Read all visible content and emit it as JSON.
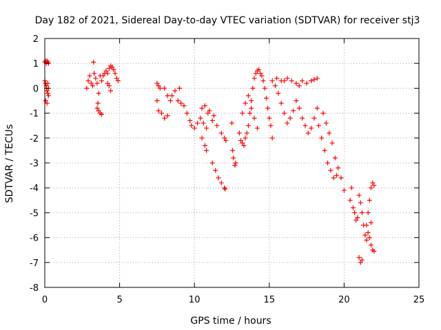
{
  "chart_data": {
    "type": "scatter",
    "title": "Day 182 of 2021, Sidereal Day-to-day VTEC variation (SDTVAR) for receiver stj3",
    "xlabel": "GPS time / hours",
    "ylabel": "SDTVAR / TECUs",
    "xlim": [
      0,
      25
    ],
    "ylim": [
      -8,
      2
    ],
    "xticks": [
      0,
      5,
      10,
      15,
      20,
      25
    ],
    "yticks": [
      -8,
      -7,
      -6,
      -5,
      -4,
      -3,
      -2,
      -1,
      0,
      1,
      2
    ],
    "grid": true,
    "marker": "+",
    "series": [
      {
        "name": "SDTVAR",
        "color": "#ff0000",
        "points": [
          [
            0.0,
            1.05
          ],
          [
            0.05,
            1.1
          ],
          [
            0.1,
            1.0
          ],
          [
            0.15,
            1.1
          ],
          [
            0.2,
            1.05
          ],
          [
            0.25,
            1.0
          ],
          [
            0.0,
            0.3
          ],
          [
            0.05,
            0.2
          ],
          [
            0.1,
            0.1
          ],
          [
            0.12,
            0.0
          ],
          [
            0.15,
            -0.1
          ],
          [
            0.2,
            -0.2
          ],
          [
            0.25,
            -0.3
          ],
          [
            0.05,
            -0.5
          ],
          [
            0.15,
            -0.6
          ],
          [
            0.2,
            0.2
          ],
          [
            0.25,
            0.0
          ],
          [
            2.8,
            0.0
          ],
          [
            2.9,
            0.3
          ],
          [
            3.0,
            0.5
          ],
          [
            3.1,
            0.2
          ],
          [
            3.2,
            0.1
          ],
          [
            3.25,
            1.05
          ],
          [
            3.3,
            0.6
          ],
          [
            3.4,
            0.4
          ],
          [
            3.5,
            0.2
          ],
          [
            3.6,
            -0.2
          ],
          [
            3.7,
            0.5
          ],
          [
            3.8,
            0.3
          ],
          [
            3.5,
            -0.8
          ],
          [
            3.6,
            -0.9
          ],
          [
            3.7,
            -1.0
          ],
          [
            3.8,
            -1.05
          ],
          [
            3.55,
            -0.6
          ],
          [
            3.9,
            0.5
          ],
          [
            4.0,
            0.6
          ],
          [
            4.1,
            0.7
          ],
          [
            4.2,
            0.6
          ],
          [
            4.3,
            0.8
          ],
          [
            4.4,
            0.9
          ],
          [
            4.5,
            0.85
          ],
          [
            4.6,
            0.75
          ],
          [
            4.7,
            0.6
          ],
          [
            4.8,
            0.4
          ],
          [
            4.9,
            0.3
          ],
          [
            4.2,
            0.2
          ],
          [
            4.3,
            0.1
          ],
          [
            4.4,
            -0.1
          ],
          [
            7.5,
            0.2
          ],
          [
            7.6,
            0.1
          ],
          [
            7.7,
            0.0
          ],
          [
            7.5,
            -0.5
          ],
          [
            7.6,
            -0.9
          ],
          [
            7.8,
            -1.0
          ],
          [
            8.0,
            -1.2
          ],
          [
            8.2,
            -1.1
          ],
          [
            8.0,
            0.0
          ],
          [
            8.2,
            -0.3
          ],
          [
            8.4,
            -0.5
          ],
          [
            8.5,
            -0.3
          ],
          [
            8.7,
            -0.1
          ],
          [
            8.9,
            -0.5
          ],
          [
            9.0,
            0.0
          ],
          [
            9.1,
            -0.6
          ],
          [
            9.3,
            -0.7
          ],
          [
            9.5,
            -1.0
          ],
          [
            9.7,
            -1.3
          ],
          [
            9.8,
            -1.5
          ],
          [
            10.0,
            -1.6
          ],
          [
            10.2,
            -1.4
          ],
          [
            10.4,
            -1.2
          ],
          [
            10.6,
            -1.4
          ],
          [
            10.8,
            -1.6
          ],
          [
            10.9,
            -1.0
          ],
          [
            11.2,
            -1.3
          ],
          [
            11.5,
            -1.5
          ],
          [
            11.8,
            -1.8
          ],
          [
            12.0,
            -2.0
          ],
          [
            12.1,
            -2.1
          ],
          [
            10.5,
            -0.8
          ],
          [
            10.7,
            -0.7
          ],
          [
            11.0,
            -0.9
          ],
          [
            11.3,
            -1.1
          ],
          [
            10.5,
            -2.0
          ],
          [
            10.7,
            -2.3
          ],
          [
            10.8,
            -2.5
          ],
          [
            11.2,
            -3.0
          ],
          [
            11.4,
            -3.3
          ],
          [
            11.6,
            -3.6
          ],
          [
            11.8,
            -3.8
          ],
          [
            12.0,
            -4.0
          ],
          [
            12.05,
            -4.05
          ],
          [
            12.5,
            -1.4
          ],
          [
            12.55,
            -2.5
          ],
          [
            12.6,
            -2.8
          ],
          [
            12.7,
            -3.1
          ],
          [
            12.75,
            -3.0
          ],
          [
            13.0,
            -1.8
          ],
          [
            13.1,
            -2.1
          ],
          [
            13.2,
            -2.2
          ],
          [
            13.3,
            -2.3
          ],
          [
            13.4,
            -2.0
          ],
          [
            13.5,
            -1.8
          ],
          [
            13.6,
            -1.5
          ],
          [
            13.7,
            -1.0
          ],
          [
            13.8,
            -0.5
          ],
          [
            13.9,
            0.0
          ],
          [
            14.0,
            0.4
          ],
          [
            14.1,
            0.6
          ],
          [
            14.2,
            0.7
          ],
          [
            14.3,
            0.75
          ],
          [
            14.4,
            0.6
          ],
          [
            14.5,
            0.5
          ],
          [
            14.6,
            0.3
          ],
          [
            14.7,
            0.0
          ],
          [
            14.8,
            -0.4
          ],
          [
            14.9,
            -0.8
          ],
          [
            15.0,
            -1.2
          ],
          [
            15.1,
            -1.5
          ],
          [
            15.2,
            -2.0
          ],
          [
            13.2,
            -1.0
          ],
          [
            13.4,
            -0.6
          ],
          [
            13.6,
            -0.3
          ],
          [
            13.8,
            -0.8
          ],
          [
            14.0,
            -1.2
          ],
          [
            14.2,
            -1.6
          ],
          [
            15.2,
            0.3
          ],
          [
            15.4,
            0.1
          ],
          [
            15.6,
            -0.2
          ],
          [
            15.8,
            -0.6
          ],
          [
            16.0,
            -1.0
          ],
          [
            16.2,
            -1.4
          ],
          [
            16.4,
            -1.2
          ],
          [
            16.6,
            -0.9
          ],
          [
            15.5,
            0.4
          ],
          [
            15.8,
            0.3
          ],
          [
            16.0,
            0.3
          ],
          [
            16.2,
            0.4
          ],
          [
            16.5,
            0.3
          ],
          [
            16.8,
            0.2
          ],
          [
            17.0,
            0.1
          ],
          [
            17.2,
            0.3
          ],
          [
            17.5,
            0.2
          ],
          [
            17.8,
            0.3
          ],
          [
            18.0,
            0.35
          ],
          [
            18.2,
            0.4
          ],
          [
            16.8,
            -0.5
          ],
          [
            17.0,
            -0.8
          ],
          [
            17.2,
            -1.2
          ],
          [
            17.4,
            -1.5
          ],
          [
            17.6,
            -1.8
          ],
          [
            17.8,
            -1.6
          ],
          [
            18.0,
            -1.2
          ],
          [
            18.2,
            -0.8
          ],
          [
            18.3,
            -1.5
          ],
          [
            18.5,
            -2.0
          ],
          [
            18.7,
            -2.5
          ],
          [
            18.9,
            -3.0
          ],
          [
            19.1,
            -3.3
          ],
          [
            19.3,
            -3.6
          ],
          [
            19.5,
            -3.5
          ],
          [
            18.6,
            -1.0
          ],
          [
            18.8,
            -1.4
          ],
          [
            19.0,
            -1.8
          ],
          [
            19.2,
            -2.2
          ],
          [
            19.4,
            -2.8
          ],
          [
            19.6,
            -3.2
          ],
          [
            19.8,
            -3.6
          ],
          [
            20.0,
            -4.1
          ],
          [
            20.4,
            -4.5
          ],
          [
            20.5,
            -4.0
          ],
          [
            20.6,
            -4.8
          ],
          [
            20.7,
            -5.0
          ],
          [
            20.8,
            -5.3
          ],
          [
            20.9,
            -5.2
          ],
          [
            21.0,
            -4.3
          ],
          [
            21.1,
            -4.6
          ],
          [
            21.2,
            -5.0
          ],
          [
            21.3,
            -5.5
          ],
          [
            21.4,
            -5.9
          ],
          [
            21.5,
            -6.1
          ],
          [
            21.0,
            -6.8
          ],
          [
            21.1,
            -7.0
          ],
          [
            21.2,
            -6.9
          ],
          [
            21.5,
            -5.5
          ],
          [
            21.6,
            -5.0
          ],
          [
            21.7,
            -4.5
          ],
          [
            21.8,
            -4.0
          ],
          [
            21.9,
            -3.8
          ],
          [
            22.0,
            -3.9
          ],
          [
            21.7,
            -6.0
          ],
          [
            21.8,
            -6.3
          ],
          [
            21.9,
            -6.5
          ],
          [
            22.0,
            -6.55
          ],
          [
            21.6,
            -5.8
          ],
          [
            21.8,
            -5.4
          ]
        ]
      }
    ]
  }
}
